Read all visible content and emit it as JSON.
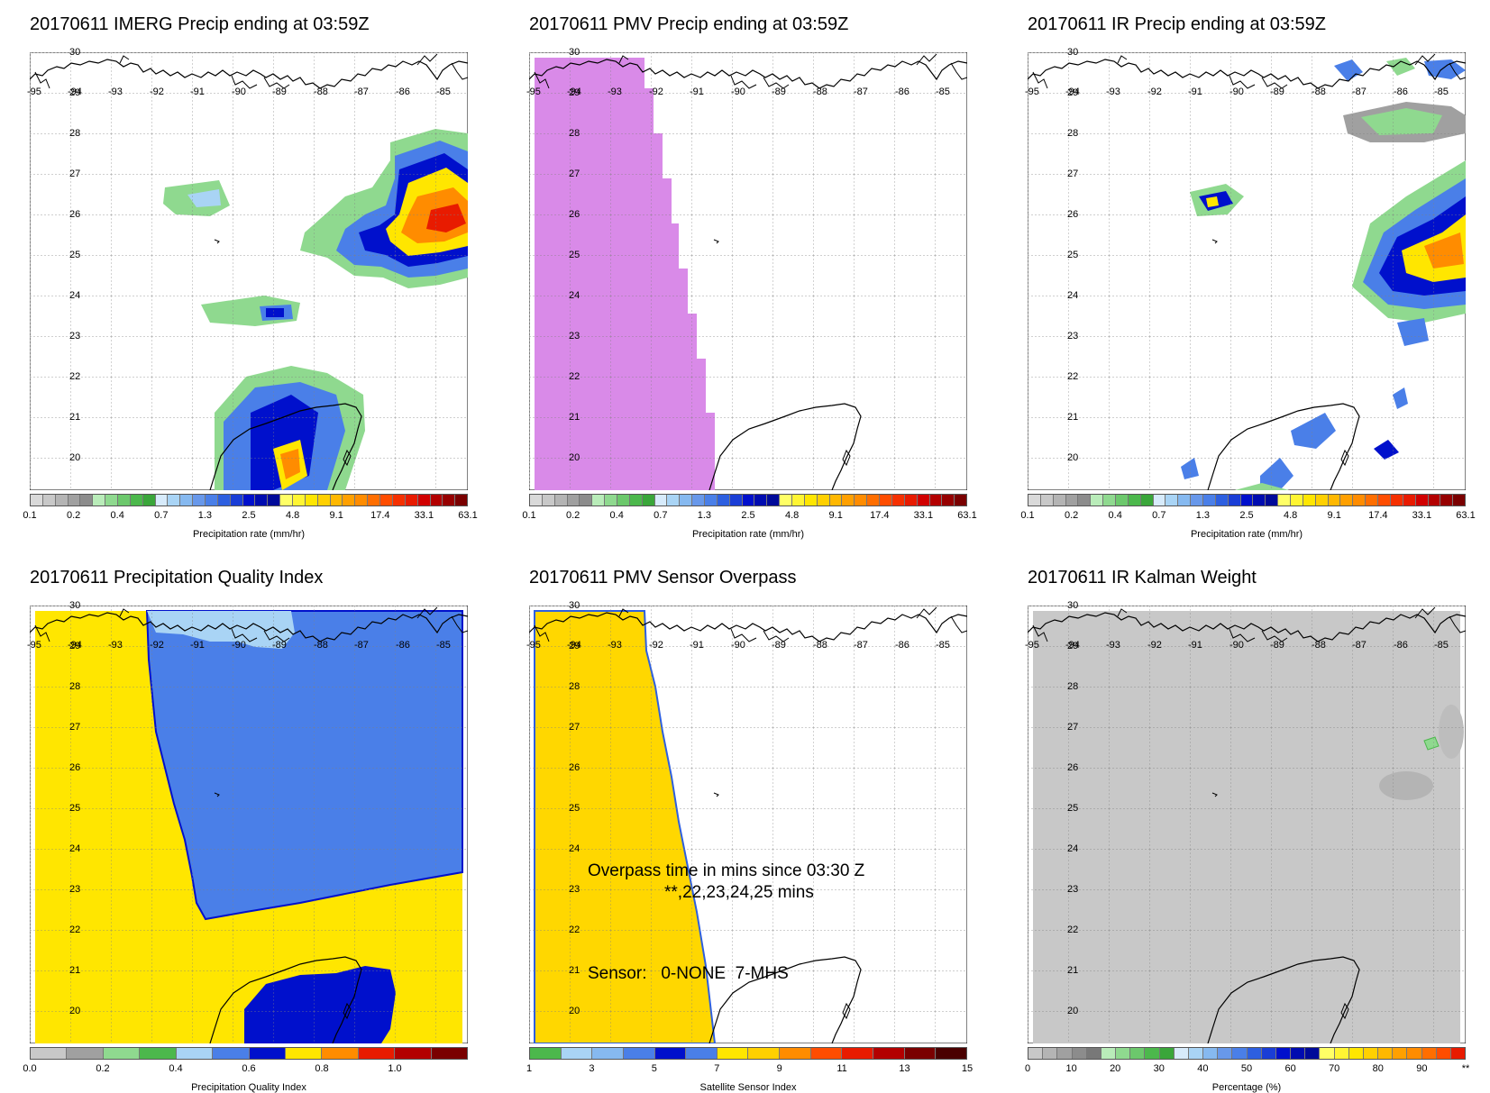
{
  "colors": {
    "gray_1": "#c8c8c8",
    "gray_2": "#a0a0a0",
    "green_1": "#8fd98f",
    "green_2": "#4cb84c",
    "lblue": "#a9d4f5",
    "mblue": "#4a7fe8",
    "dblue": "#0010cc",
    "yellow": "#ffe600",
    "orange": "#ff8c00",
    "red": "#e81b00",
    "dred": "#7a0000",
    "magenta": "#d98ae8",
    "land_line": "#000000",
    "grid": "#808080"
  },
  "map": {
    "lon_labels": [
      "-95",
      "-94",
      "-93",
      "-92",
      "-91",
      "-90",
      "-89",
      "-88",
      "-87",
      "-86",
      "-85"
    ],
    "lat_labels": [
      "30",
      "29",
      "28",
      "27",
      "26",
      "25",
      "24",
      "23",
      "22",
      "21",
      "20"
    ]
  },
  "panels": [
    {
      "id": "imerg",
      "title": "20170611 IMERG Precip ending at 03:59Z",
      "colorbar_label": "Precipitation rate (mm/hr)",
      "ticks": [
        "0.1",
        "0.2",
        "0.4",
        "0.7",
        "1.3",
        "2.5",
        "4.8",
        "9.1",
        "17.4",
        "33.1",
        "63.1"
      ]
    },
    {
      "id": "pmv",
      "title": "20170611 PMV Precip ending at 03:59Z",
      "colorbar_label": "Precipitation rate (mm/hr)",
      "ticks": [
        "0.1",
        "0.2",
        "0.4",
        "0.7",
        "1.3",
        "2.5",
        "4.8",
        "9.1",
        "17.4",
        "33.1",
        "63.1"
      ]
    },
    {
      "id": "ir",
      "title": "20170611 IR Precip ending at 03:59Z",
      "colorbar_label": "Precipitation rate (mm/hr)",
      "ticks": [
        "0.1",
        "0.2",
        "0.4",
        "0.7",
        "1.3",
        "2.5",
        "4.8",
        "9.1",
        "17.4",
        "33.1",
        "63.1"
      ]
    },
    {
      "id": "quality",
      "title": "20170611 Precipitation Quality Index",
      "colorbar_label": "Precipitation Quality Index",
      "ticks": [
        "0.0",
        "0.2",
        "0.4",
        "0.6",
        "0.8",
        "1.0"
      ]
    },
    {
      "id": "overpass",
      "title": "20170611 PMV Sensor Overpass",
      "colorbar_label": "Satellite Sensor Index",
      "ticks": [
        "1",
        "3",
        "5",
        "7",
        "9",
        "11",
        "13",
        "15"
      ],
      "annotation_time": "Overpass time in mins since 03:30 Z",
      "annotation_mins": "**,22,23,24,25 mins",
      "annotation_sensor": "Sensor:   0-NONE  7-MHS"
    },
    {
      "id": "kalman",
      "title": "20170611 IR Kalman Weight",
      "colorbar_label": "Percentage (%)",
      "ticks": [
        "0",
        "10",
        "20",
        "30",
        "40",
        "50",
        "60",
        "70",
        "80",
        "90",
        "**"
      ]
    }
  ]
}
